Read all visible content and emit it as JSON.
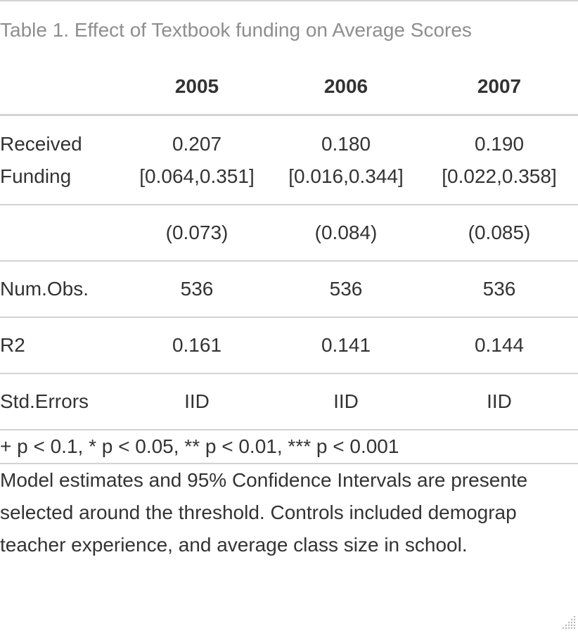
{
  "table": {
    "caption": "Table 1. Effect of Textbook funding on Average Scores",
    "columns": [
      "",
      "2005",
      "2006",
      "2007"
    ],
    "rows": [
      {
        "label": [
          "Received",
          "Funding"
        ],
        "cells": [
          [
            "0.207",
            "[0.064,0.351]"
          ],
          [
            "0.180",
            "[0.016,0.344]"
          ],
          [
            "0.190",
            "[0.022,0.358]"
          ]
        ]
      },
      {
        "label": [
          ""
        ],
        "cells": [
          [
            "(0.073)"
          ],
          [
            "(0.084)"
          ],
          [
            "(0.085)"
          ]
        ]
      },
      {
        "label": [
          "Num.Obs."
        ],
        "cells": [
          [
            "536"
          ],
          [
            "536"
          ],
          [
            "536"
          ]
        ]
      },
      {
        "label": [
          "R2"
        ],
        "cells": [
          [
            "0.161"
          ],
          [
            "0.141"
          ],
          [
            "0.144"
          ]
        ]
      },
      {
        "label": [
          "Std.Errors"
        ],
        "cells": [
          [
            "IID"
          ],
          [
            "IID"
          ],
          [
            "IID"
          ]
        ]
      }
    ],
    "footnotes": {
      "significance": "+ p < 0.1, * p < 0.05, ** p < 0.01, *** p < 0.001",
      "note_lines": [
        "Model estimates and 95% Confidence Intervals are presente",
        "selected around the threshold. Controls included demograp",
        "teacher experience, and average class size in school."
      ]
    }
  },
  "colors": {
    "rule": "#d3d3d3",
    "caption_text": "#8e8e8e",
    "body_text": "#333333"
  }
}
